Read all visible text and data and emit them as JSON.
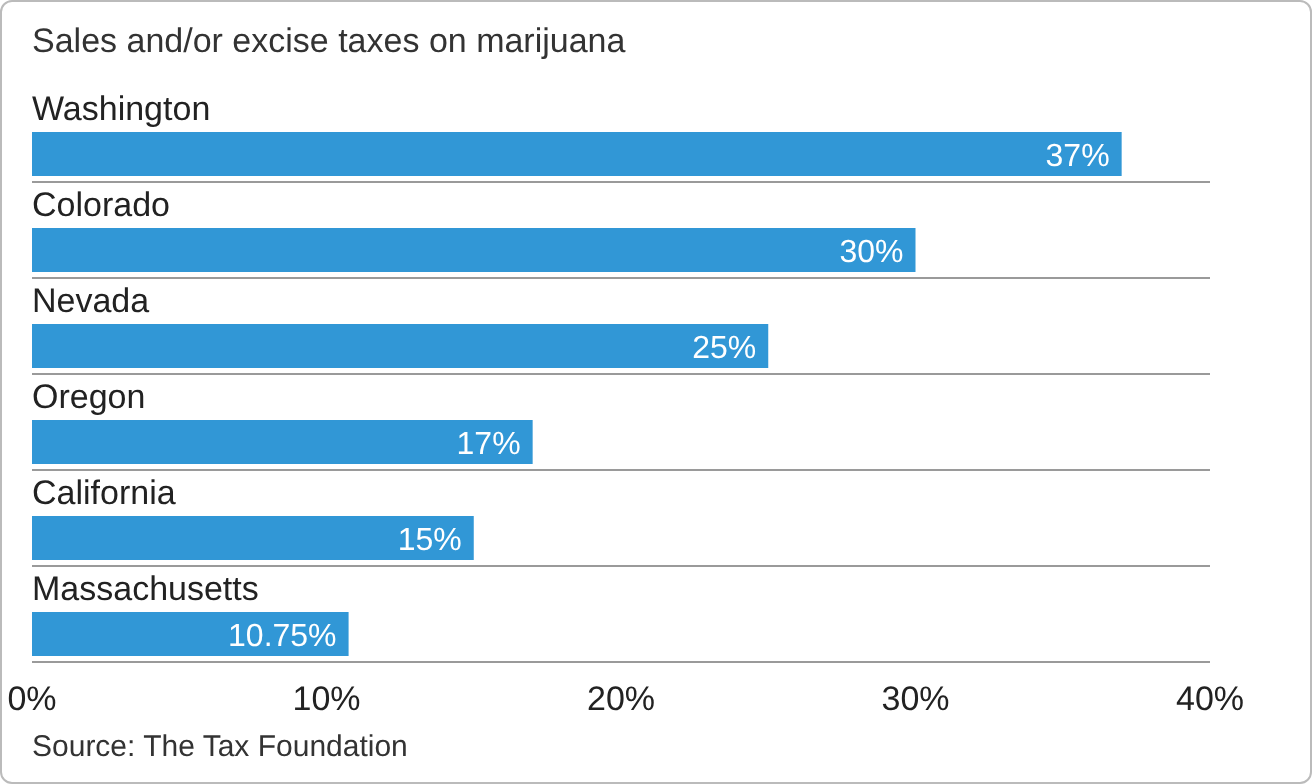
{
  "chart_data": {
    "type": "bar",
    "orientation": "horizontal",
    "title": "Sales and/or excise taxes on marijuana",
    "categories": [
      "Washington",
      "Colorado",
      "Nevada",
      "Oregon",
      "California",
      "Massachusetts"
    ],
    "values": [
      37,
      30,
      25,
      17,
      15,
      10.75
    ],
    "value_labels": [
      "37%",
      "30%",
      "25%",
      "17%",
      "15%",
      "10.75%"
    ],
    "color": "#3197d6",
    "xlim": [
      0,
      40
    ],
    "xticks": [
      {
        "value": 0,
        "label": "0%"
      },
      {
        "value": 10,
        "label": "10%"
      },
      {
        "value": 20,
        "label": "20%"
      },
      {
        "value": 30,
        "label": "30%"
      },
      {
        "value": 40,
        "label": "40%"
      }
    ],
    "grid": "y",
    "annotations": [
      "Source: The Tax Foundation"
    ]
  }
}
